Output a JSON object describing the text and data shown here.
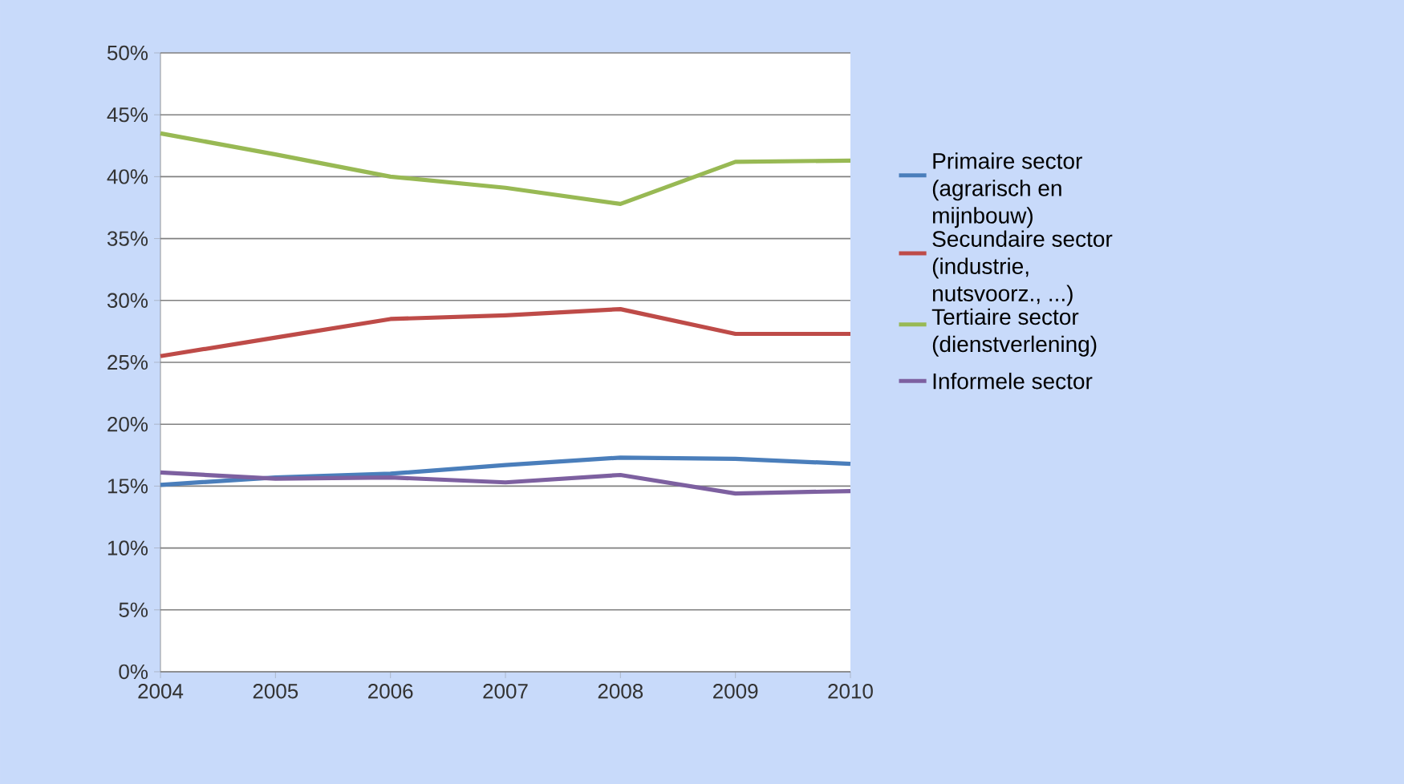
{
  "chart_data": {
    "type": "line",
    "categories": [
      "2004",
      "2005",
      "2006",
      "2007",
      "2008",
      "2009",
      "2010"
    ],
    "ylim": [
      0,
      50
    ],
    "yticks": [
      {
        "value": 0,
        "label": "0%"
      },
      {
        "value": 5,
        "label": "5%"
      },
      {
        "value": 10,
        "label": "10%"
      },
      {
        "value": 15,
        "label": "15%"
      },
      {
        "value": 20,
        "label": "20%"
      },
      {
        "value": 25,
        "label": "25%"
      },
      {
        "value": 30,
        "label": "30%"
      },
      {
        "value": 35,
        "label": "35%"
      },
      {
        "value": 40,
        "label": "40%"
      },
      {
        "value": 45,
        "label": "45%"
      },
      {
        "value": 50,
        "label": "50%"
      }
    ],
    "grid": "y",
    "legend": "right",
    "marker": "none",
    "line_style": "solid",
    "series": [
      {
        "name": "Primaire sector (agrarisch en mijnbouw)",
        "color": "#4a7ebb",
        "values": [
          15.1,
          15.7,
          16.0,
          16.7,
          17.3,
          17.2,
          16.8
        ]
      },
      {
        "name": "Secundaire sector (industrie, nutsvoorz., ...)",
        "color": "#be4b48",
        "values": [
          25.5,
          27.0,
          28.5,
          28.8,
          29.3,
          27.3,
          27.3
        ]
      },
      {
        "name": "Tertiaire sector (dienstverlening)",
        "color": "#98b954",
        "values": [
          43.5,
          41.8,
          40.0,
          39.1,
          37.8,
          41.2,
          41.3
        ]
      },
      {
        "name": "Informele sector",
        "color": "#7d60a0",
        "values": [
          16.1,
          15.6,
          15.7,
          15.3,
          15.9,
          14.4,
          14.6
        ]
      }
    ]
  }
}
